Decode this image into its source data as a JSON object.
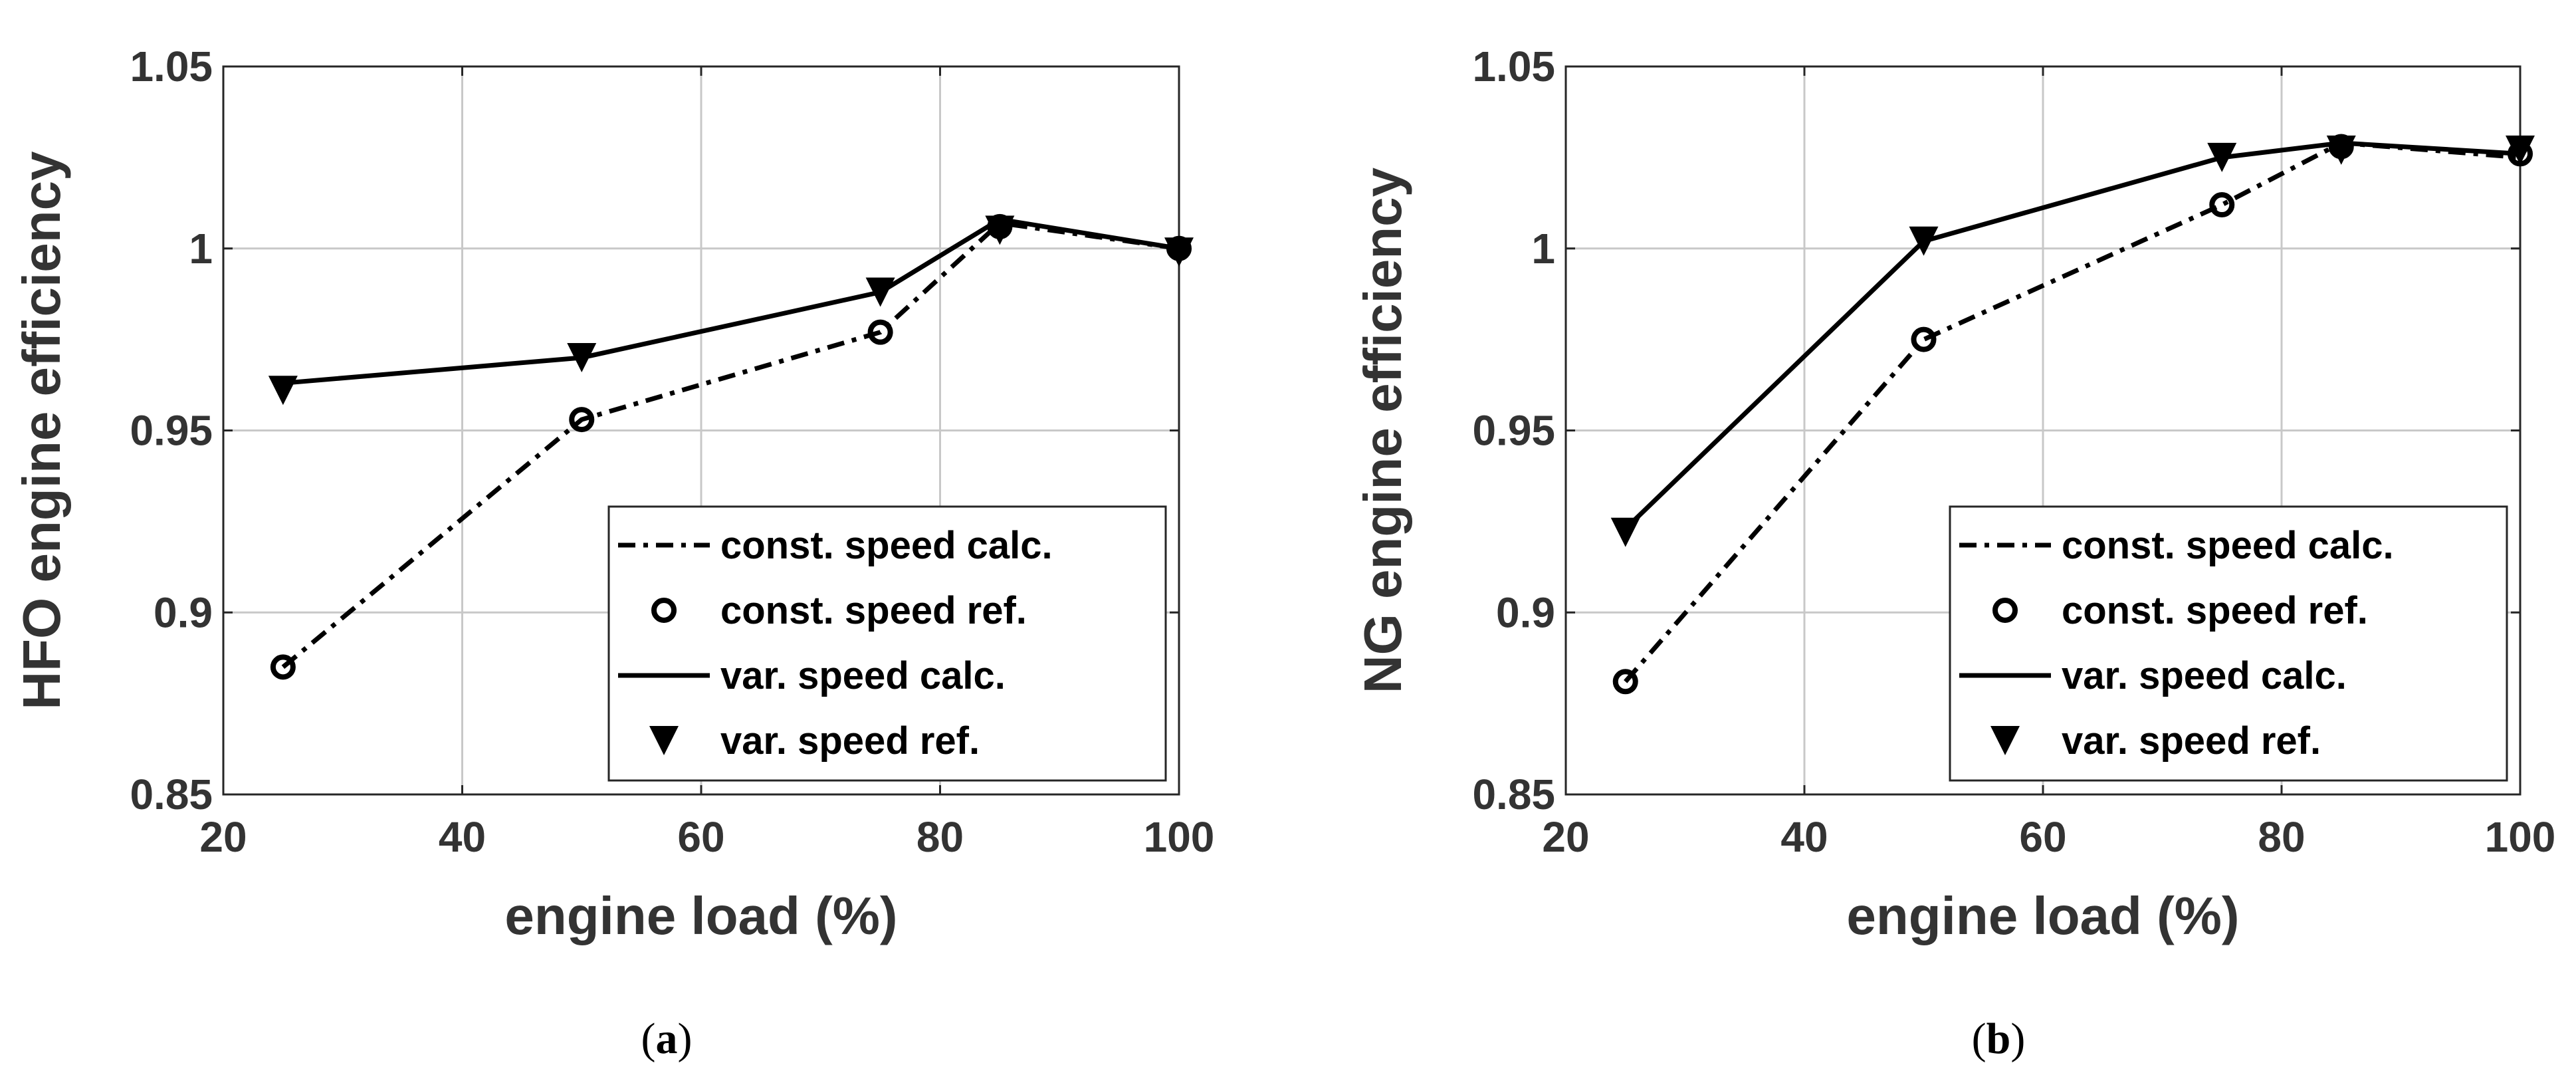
{
  "chart_data": [
    {
      "type": "line",
      "panel_label": "a",
      "xlabel": "engine load (%)",
      "ylabel": "HFO engine efficiency",
      "xlim": [
        20,
        100
      ],
      "ylim": [
        0.85,
        1.05
      ],
      "xticks": [
        20,
        40,
        60,
        80,
        100
      ],
      "yticks": [
        0.85,
        0.9,
        0.95,
        1,
        1.05
      ],
      "xtick_labels": [
        "20",
        "40",
        "60",
        "80",
        "100"
      ],
      "ytick_labels": [
        "0.85",
        "0.9",
        "0.95",
        "1",
        "1.05"
      ],
      "grid": true,
      "legend_position": "bottom-right",
      "series": [
        {
          "name": "const. speed calc.",
          "style": "dashdot",
          "x": [
            25,
            50,
            75,
            85,
            100
          ],
          "y": [
            0.885,
            0.953,
            0.977,
            1.007,
            1.0
          ]
        },
        {
          "name": "const. speed ref.",
          "style": "circle",
          "x": [
            25,
            50,
            75,
            85,
            100
          ],
          "y": [
            0.885,
            0.953,
            0.977,
            1.006,
            1.0
          ]
        },
        {
          "name": "var. speed calc.",
          "style": "solid",
          "x": [
            25,
            50,
            75,
            85,
            100
          ],
          "y": [
            0.963,
            0.97,
            0.988,
            1.008,
            1.0
          ]
        },
        {
          "name": "var. speed ref.",
          "style": "triangle",
          "x": [
            25,
            50,
            75,
            85,
            100
          ],
          "y": [
            0.961,
            0.97,
            0.988,
            1.005,
            0.999
          ]
        }
      ]
    },
    {
      "type": "line",
      "panel_label": "b",
      "xlabel": "engine load (%)",
      "ylabel": "NG engine efficiency",
      "xlim": [
        20,
        100
      ],
      "ylim": [
        0.85,
        1.05
      ],
      "xticks": [
        20,
        40,
        60,
        80,
        100
      ],
      "yticks": [
        0.85,
        0.9,
        0.95,
        1,
        1.05
      ],
      "xtick_labels": [
        "20",
        "40",
        "60",
        "80",
        "100"
      ],
      "ytick_labels": [
        "0.85",
        "0.9",
        "0.95",
        "1",
        "1.05"
      ],
      "grid": true,
      "legend_position": "bottom-right",
      "series": [
        {
          "name": "const. speed calc.",
          "style": "dashdot",
          "x": [
            25,
            50,
            75,
            85,
            100
          ],
          "y": [
            0.881,
            0.975,
            1.012,
            1.029,
            1.025
          ]
        },
        {
          "name": "const. speed ref.",
          "style": "circle",
          "x": [
            25,
            50,
            75,
            85,
            100
          ],
          "y": [
            0.881,
            0.975,
            1.012,
            1.028,
            1.026
          ]
        },
        {
          "name": "var. speed calc.",
          "style": "solid",
          "x": [
            25,
            50,
            75,
            85,
            100
          ],
          "y": [
            0.923,
            1.002,
            1.025,
            1.029,
            1.026
          ]
        },
        {
          "name": "var. speed ref.",
          "style": "triangle",
          "x": [
            25,
            50,
            75,
            85,
            100
          ],
          "y": [
            0.922,
            1.002,
            1.025,
            1.027,
            1.027
          ]
        }
      ]
    }
  ]
}
